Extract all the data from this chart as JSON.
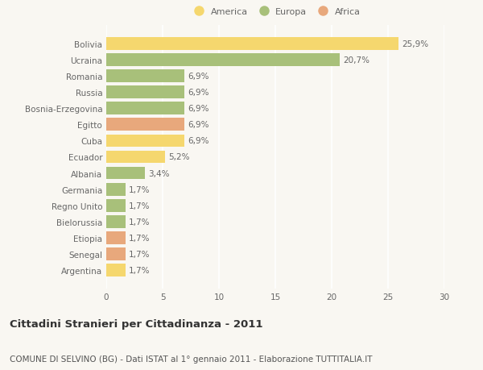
{
  "categories": [
    "Bolivia",
    "Ucraina",
    "Romania",
    "Russia",
    "Bosnia-Erzegovina",
    "Egitto",
    "Cuba",
    "Ecuador",
    "Albania",
    "Germania",
    "Regno Unito",
    "Bielorussia",
    "Etiopia",
    "Senegal",
    "Argentina"
  ],
  "values": [
    25.9,
    20.7,
    6.9,
    6.9,
    6.9,
    6.9,
    6.9,
    5.2,
    3.4,
    1.7,
    1.7,
    1.7,
    1.7,
    1.7,
    1.7
  ],
  "labels": [
    "25,9%",
    "20,7%",
    "6,9%",
    "6,9%",
    "6,9%",
    "6,9%",
    "6,9%",
    "5,2%",
    "3,4%",
    "1,7%",
    "1,7%",
    "1,7%",
    "1,7%",
    "1,7%",
    "1,7%"
  ],
  "continents": [
    "America",
    "Europa",
    "Europa",
    "Europa",
    "Europa",
    "Africa",
    "America",
    "America",
    "Europa",
    "Europa",
    "Europa",
    "Europa",
    "Africa",
    "Africa",
    "America"
  ],
  "colors": {
    "America": "#F5D76E",
    "Europa": "#A8C07A",
    "Africa": "#E8A87C"
  },
  "xlim": [
    0,
    30
  ],
  "xticks": [
    0,
    5,
    10,
    15,
    20,
    25,
    30
  ],
  "title": "Cittadini Stranieri per Cittadinanza - 2011",
  "subtitle": "COMUNE DI SELVINO (BG) - Dati ISTAT al 1° gennaio 2011 - Elaborazione TUTTITALIA.IT",
  "background_color": "#F9F7F2",
  "bar_height": 0.78,
  "label_fontsize": 7.5,
  "ytick_fontsize": 7.5,
  "xtick_fontsize": 7.5,
  "title_fontsize": 9.5,
  "subtitle_fontsize": 7.5
}
